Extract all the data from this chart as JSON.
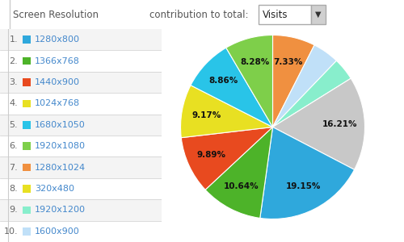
{
  "title": "Screen Resolution",
  "contribution_label": "contribution to total:",
  "visits_label": "Visits",
  "labels": [
    "1280x800",
    "1366x768",
    "1440x900",
    "1024x768",
    "1680x1050",
    "1920x1080",
    "1280x1024",
    "320x480",
    "1920x1200",
    "1600x900"
  ],
  "values": [
    19.15,
    10.64,
    9.89,
    9.17,
    8.86,
    8.28,
    7.33,
    16.21,
    3.87,
    4.6
  ],
  "colors": [
    "#2fa8dc",
    "#4db329",
    "#e84a1f",
    "#e8e022",
    "#29c4e8",
    "#7ecf4a",
    "#f09040",
    "#c8c8c8",
    "#88eecc",
    "#c0e0f8"
  ],
  "pct_labels": [
    "19.15%",
    "10.64%",
    "9.89%",
    "9.17%",
    "8.86%",
    "8.28%",
    "7.33%",
    "16.21%",
    "",
    ""
  ],
  "legend_colors": [
    "#2fa8dc",
    "#4db329",
    "#e84a1f",
    "#e8e022",
    "#29c4e8",
    "#7ecf4a",
    "#f09040",
    "#e8e022",
    "#88eecc",
    "#c0e0f8"
  ],
  "bg_color": "#ffffff",
  "header_bg": "#e0e0e0",
  "row_colors": [
    "#f4f4f4",
    "#ffffff"
  ],
  "divider_color": "#cccccc",
  "number_color": "#666666",
  "link_color": "#4488cc",
  "header_text_color": "#555555"
}
